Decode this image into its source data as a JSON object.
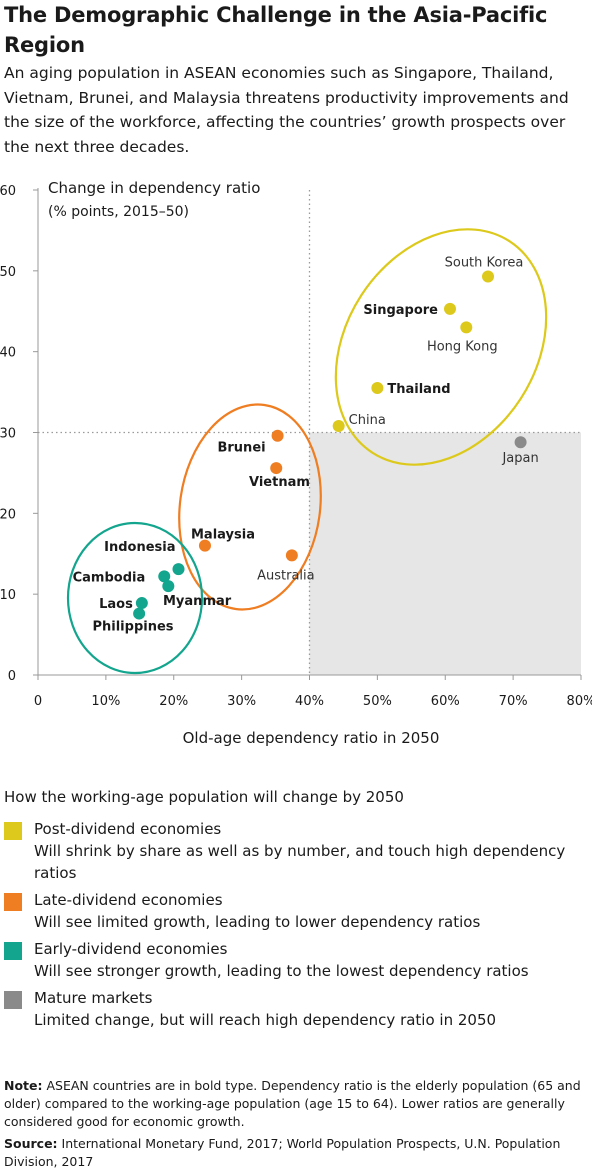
{
  "title": "The Demographic Challenge in the Asia-Pacific Region",
  "subtitle": "An aging population in ASEAN economies such as Singapore, Thailand, Vietnam, Brunei, and Malaysia threatens productivity improvements and the size of the workforce, affecting the countries’ growth prospects over the next three decades.",
  "chart_data": {
    "type": "scatter",
    "ylabel_line1": "Change in dependency ratio",
    "ylabel_line2": "(% points, 2015–50)",
    "xlabel": "Old-age dependency ratio in 2050",
    "xlim": [
      0,
      80
    ],
    "ylim": [
      0,
      60
    ],
    "x_ticks": [
      0,
      10,
      20,
      30,
      40,
      50,
      60,
      70,
      80
    ],
    "x_tick_labels": [
      "0",
      "10%",
      "20%",
      "30%",
      "40%",
      "50%",
      "60%",
      "70%",
      "80%"
    ],
    "y_ticks": [
      0,
      10,
      20,
      30,
      40,
      50,
      60
    ],
    "y_tick_labels": [
      "0",
      "10",
      "20",
      "30",
      "40",
      "50",
      "60"
    ],
    "reference_lines": {
      "x": 40,
      "y": 30
    },
    "shaded_region": {
      "x": [
        40,
        80
      ],
      "y": [
        0,
        30
      ],
      "color": "#e6e6e6"
    },
    "colors": {
      "post": "#dcc91b",
      "late": "#ef7d22",
      "early": "#13a58d",
      "mature": "#8a8a8a"
    },
    "points": [
      {
        "label": "South Korea",
        "x": 66.3,
        "y": 49.3,
        "group": "post",
        "bold": false
      },
      {
        "label": "Singapore",
        "x": 60.7,
        "y": 45.3,
        "group": "post",
        "bold": true
      },
      {
        "label": "Hong Kong",
        "x": 63.1,
        "y": 43.0,
        "group": "post",
        "bold": false
      },
      {
        "label": "Thailand",
        "x": 50.0,
        "y": 35.5,
        "group": "post",
        "bold": true
      },
      {
        "label": "China",
        "x": 44.3,
        "y": 30.8,
        "group": "post",
        "bold": false
      },
      {
        "label": "Japan",
        "x": 71.1,
        "y": 28.8,
        "group": "mature",
        "bold": false
      },
      {
        "label": "Brunei",
        "x": 35.3,
        "y": 29.6,
        "group": "late",
        "bold": true
      },
      {
        "label": "Vietnam",
        "x": 35.1,
        "y": 25.6,
        "group": "late",
        "bold": true
      },
      {
        "label": "Malaysia",
        "x": 24.6,
        "y": 16.0,
        "group": "late",
        "bold": true
      },
      {
        "label": "Australia",
        "x": 37.4,
        "y": 14.8,
        "group": "late",
        "bold": false
      },
      {
        "label": "Indonesia",
        "x": 20.7,
        "y": 13.1,
        "group": "early",
        "bold": true
      },
      {
        "label": "Cambodia",
        "x": 18.6,
        "y": 12.2,
        "group": "early",
        "bold": true
      },
      {
        "label": "Myanmar",
        "x": 19.2,
        "y": 11.0,
        "group": "early",
        "bold": true
      },
      {
        "label": "Laos",
        "x": 15.3,
        "y": 8.9,
        "group": "early",
        "bold": true
      },
      {
        "label": "Philippines",
        "x": 14.9,
        "y": 7.6,
        "group": "early",
        "bold": true
      }
    ]
  },
  "legend": {
    "heading": "How the working-age population will change by 2050",
    "items": [
      {
        "name": "Post-dividend economies",
        "desc": "Will shrink by share as well as by number, and touch high dependency ratios",
        "color": "#dcc91b"
      },
      {
        "name": "Late-dividend economies",
        "desc": "Will see limited growth, leading to lower dependency ratios",
        "color": "#ef7d22"
      },
      {
        "name": "Early-dividend economies",
        "desc": "Will see stronger growth, leading to the lowest dependency ratios",
        "color": "#13a58d"
      },
      {
        "name": "Mature markets",
        "desc": "Limited change, but will reach high dependency ratio in 2050",
        "color": "#8a8a8a"
      }
    ]
  },
  "note_label": "Note:",
  "note_text": "ASEAN countries are in bold type. Dependency ratio is the elderly population (65 and older) compared to the working-age population (age 15 to 64). Lower ratios are generally considered good for economic growth.",
  "source_label": "Source:",
  "source_text": "International Monetary Fund, 2017; World Population Prospects, U.N. Population Division, 2017"
}
